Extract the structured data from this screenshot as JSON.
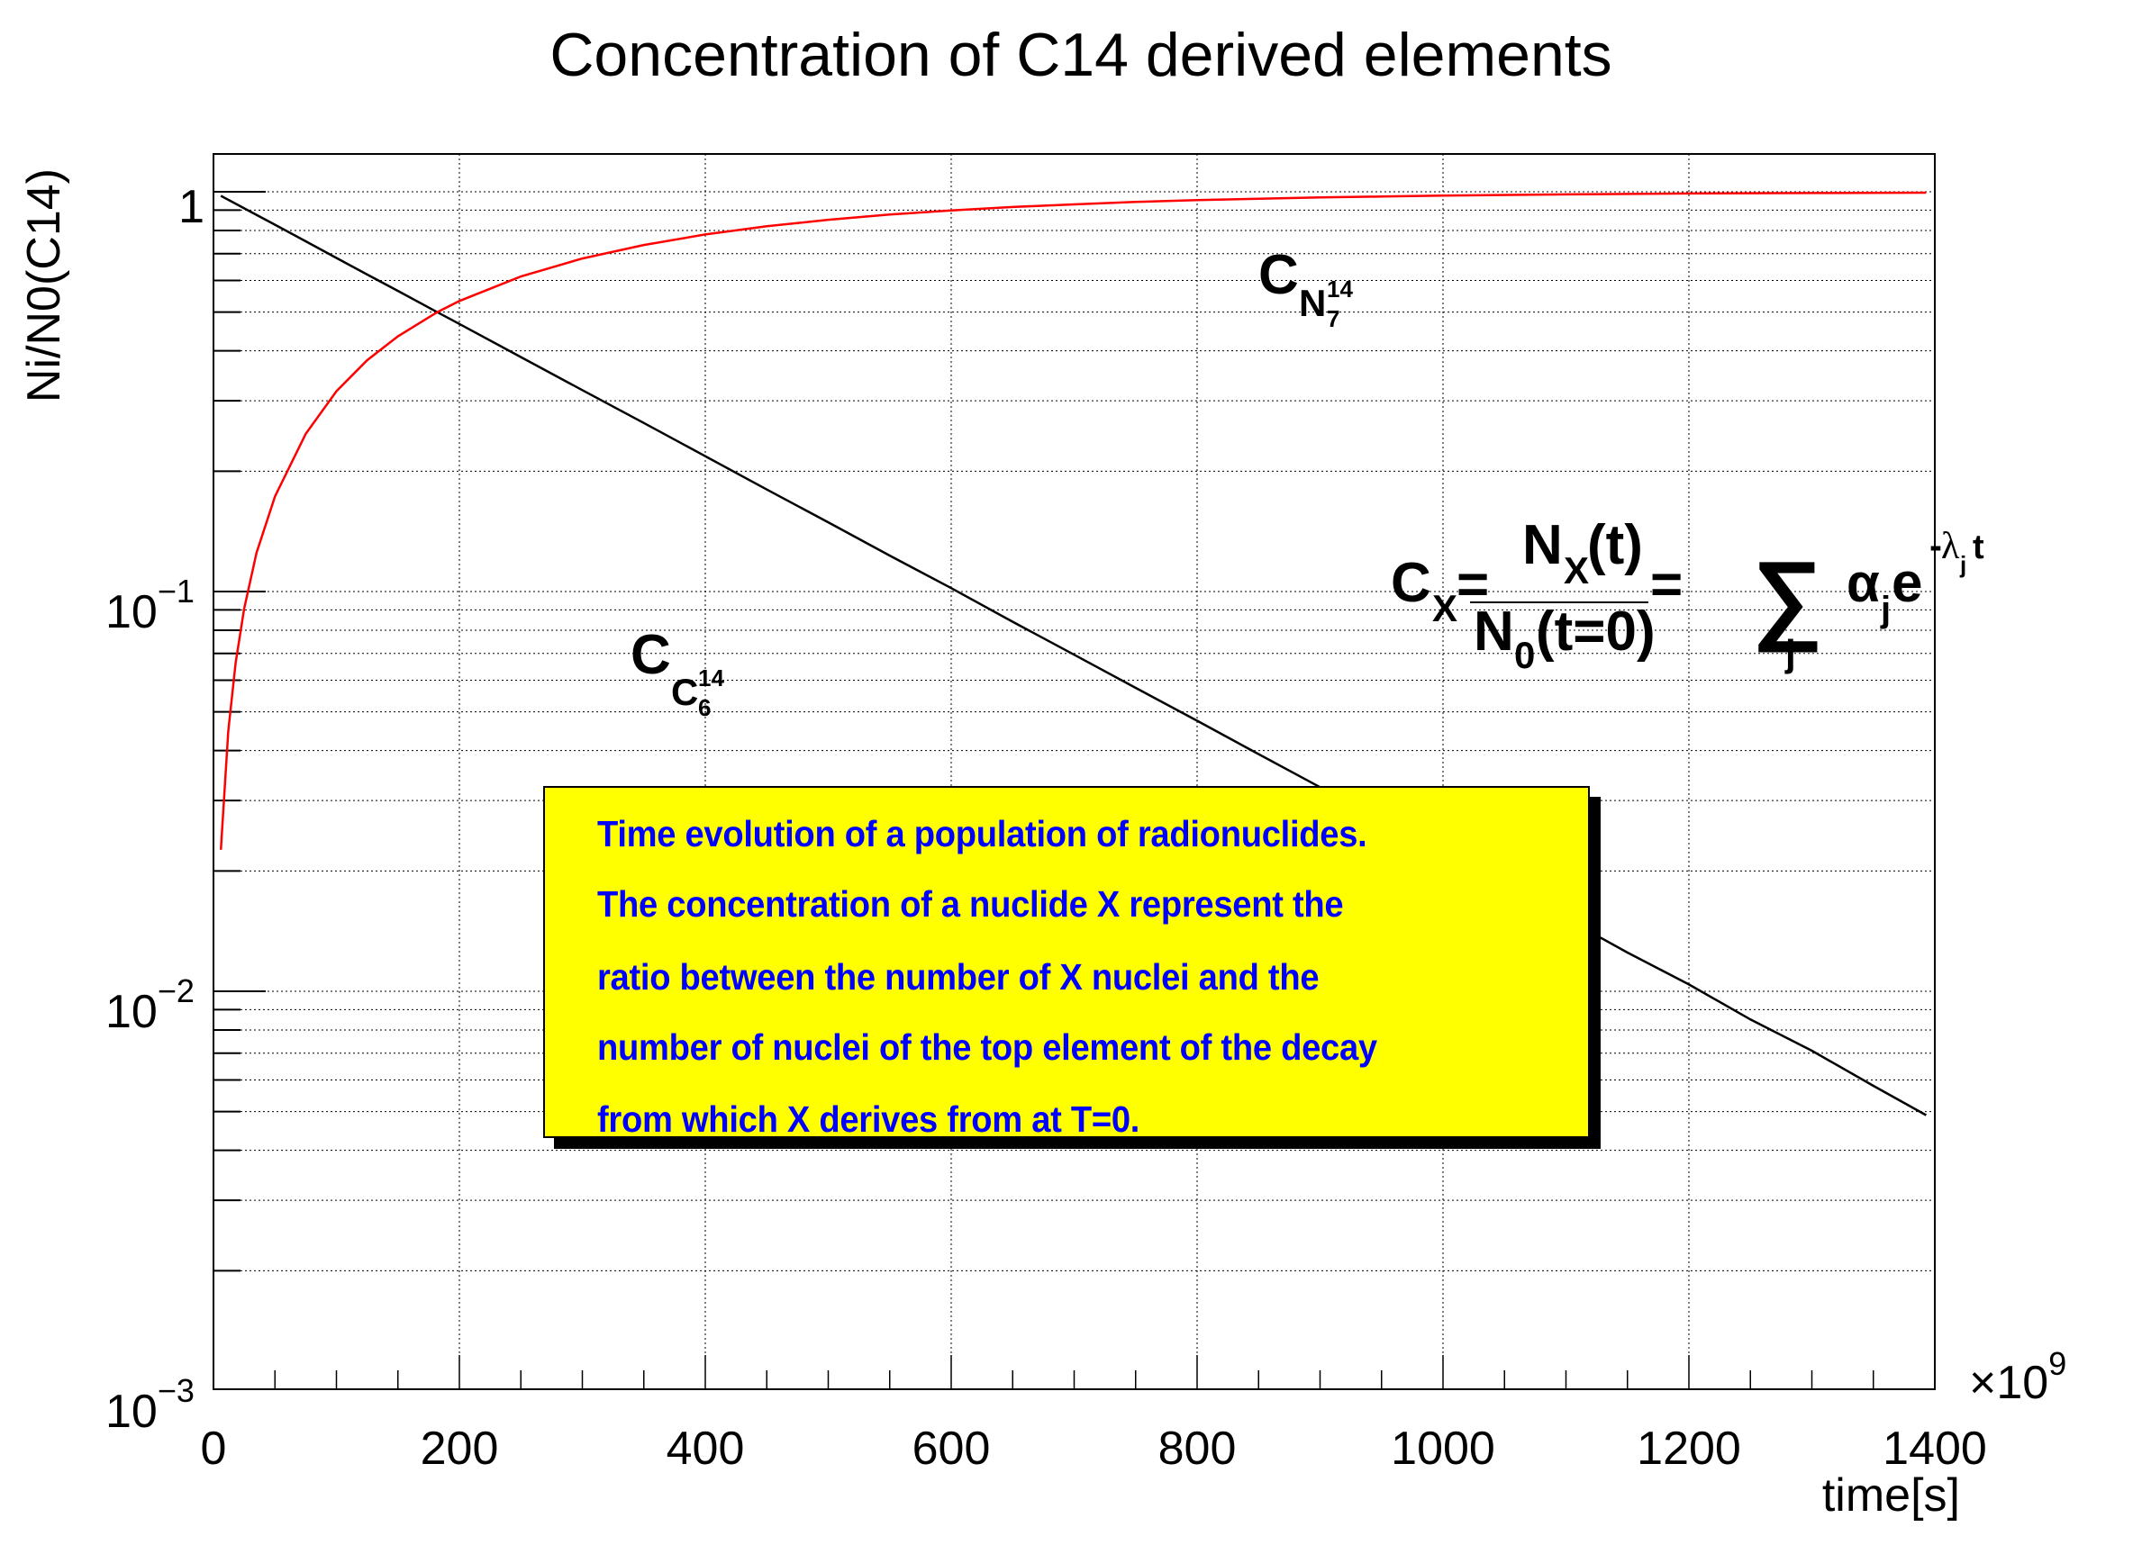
{
  "title": "Concentration of C14 derived elements",
  "colors": {
    "background": "#ffffff",
    "frame": "#000000",
    "grid": "#000000",
    "series_c14": "#000000",
    "series_n14": "#ff0000",
    "box_fill": "#ffff00",
    "box_text": "#0000ff",
    "box_shadow": "#000000"
  },
  "labels": {
    "c14_curve": {
      "base": "C",
      "element": "C",
      "mass": "14",
      "atomic": "6"
    },
    "n14_curve": {
      "base": "C",
      "element": "N",
      "mass": "14",
      "atomic": "7"
    },
    "formula": {
      "lhs_base": "C",
      "lhs_sub": "X",
      "equals": "=",
      "num_base": "N",
      "num_sub": "X",
      "num_arg": "(t)",
      "den_base": "N",
      "den_sub": "0",
      "den_arg": "(t=0)",
      "sum_symbol": "∑",
      "sum_index": "j",
      "alpha": "α",
      "alpha_sub": "j",
      "exp_base": "e",
      "exp_minus": "-",
      "exp_lambda": "λ",
      "exp_lambda_sub": "j",
      "exp_t": "t"
    }
  },
  "info_box": {
    "lines": [
      "Time evolution of a population of radionuclides.",
      "The concentration of a nuclide X represent the",
      "ratio between the number of X nuclei and the",
      "number of nuclei of the top element of the decay",
      "from which X derives from at T=0."
    ]
  },
  "chart_data": {
    "type": "line",
    "title": "Concentration of C14 derived elements",
    "xlabel": "time[s]",
    "ylabel": "Ni/N0(C14)",
    "x_multiplier": "×10^9",
    "x_multiplier_base": "×10",
    "x_multiplier_exp": "9",
    "xlim": [
      0,
      1400
    ],
    "ylim": [
      0.001,
      1.24
    ],
    "yscale": "log",
    "grid": true,
    "x_ticks": [
      0,
      200,
      400,
      600,
      800,
      1000,
      1200,
      1400
    ],
    "x_tick_labels": [
      "0",
      "200",
      "400",
      "600",
      "800",
      "1000",
      "1200",
      "1400"
    ],
    "y_ticks": [
      0.001,
      0.01,
      0.1,
      1
    ],
    "y_tick_labels": [
      {
        "base": "10",
        "exp": "−3"
      },
      {
        "base": "10",
        "exp": "−2"
      },
      {
        "base": "10",
        "exp": "−1"
      },
      {
        "base": "1",
        "exp": ""
      }
    ],
    "series": [
      {
        "name": "C_{C^{14}_6}",
        "color": "#000000",
        "x": [
          6,
          25,
          50,
          75,
          100,
          125,
          150,
          182,
          200,
          250,
          300,
          350,
          400,
          450,
          500,
          550,
          600,
          650,
          700,
          750,
          800,
          850,
          900,
          950,
          1000,
          1050,
          1100,
          1150,
          1200,
          1250,
          1300,
          1350,
          1393
        ],
        "values": [
          0.977,
          0.909,
          0.827,
          0.752,
          0.683,
          0.621,
          0.565,
          0.5,
          0.467,
          0.386,
          0.319,
          0.264,
          0.218,
          0.18,
          0.149,
          0.123,
          0.102,
          0.084,
          0.0695,
          0.0574,
          0.0475,
          0.0392,
          0.0324,
          0.0268,
          0.0222,
          0.0183,
          0.0152,
          0.0125,
          0.0104,
          0.0085,
          0.0071,
          0.0058,
          0.0049
        ]
      },
      {
        "name": "C_{N^{14}_7}",
        "color": "#ff0000",
        "x": [
          6,
          12,
          18,
          25,
          35,
          50,
          75,
          100,
          125,
          150,
          182,
          200,
          250,
          300,
          350,
          400,
          450,
          500,
          550,
          600,
          650,
          700,
          750,
          800,
          850,
          900,
          950,
          1000,
          1100,
          1200,
          1300,
          1393
        ],
        "values": [
          0.0226,
          0.0447,
          0.0663,
          0.0907,
          0.125,
          0.173,
          0.248,
          0.317,
          0.379,
          0.435,
          0.5,
          0.533,
          0.614,
          0.681,
          0.736,
          0.782,
          0.82,
          0.851,
          0.877,
          0.898,
          0.916,
          0.93,
          0.943,
          0.953,
          0.961,
          0.968,
          0.973,
          0.978,
          0.985,
          0.99,
          0.993,
          0.995
        ]
      }
    ],
    "annotations": [
      "C_{C^{14}_6}",
      "C_{N^{14}_7}",
      "C_X = N_X(t) / N_0(t=0) = ∑_j α_j e^{-λ_j t}"
    ]
  }
}
